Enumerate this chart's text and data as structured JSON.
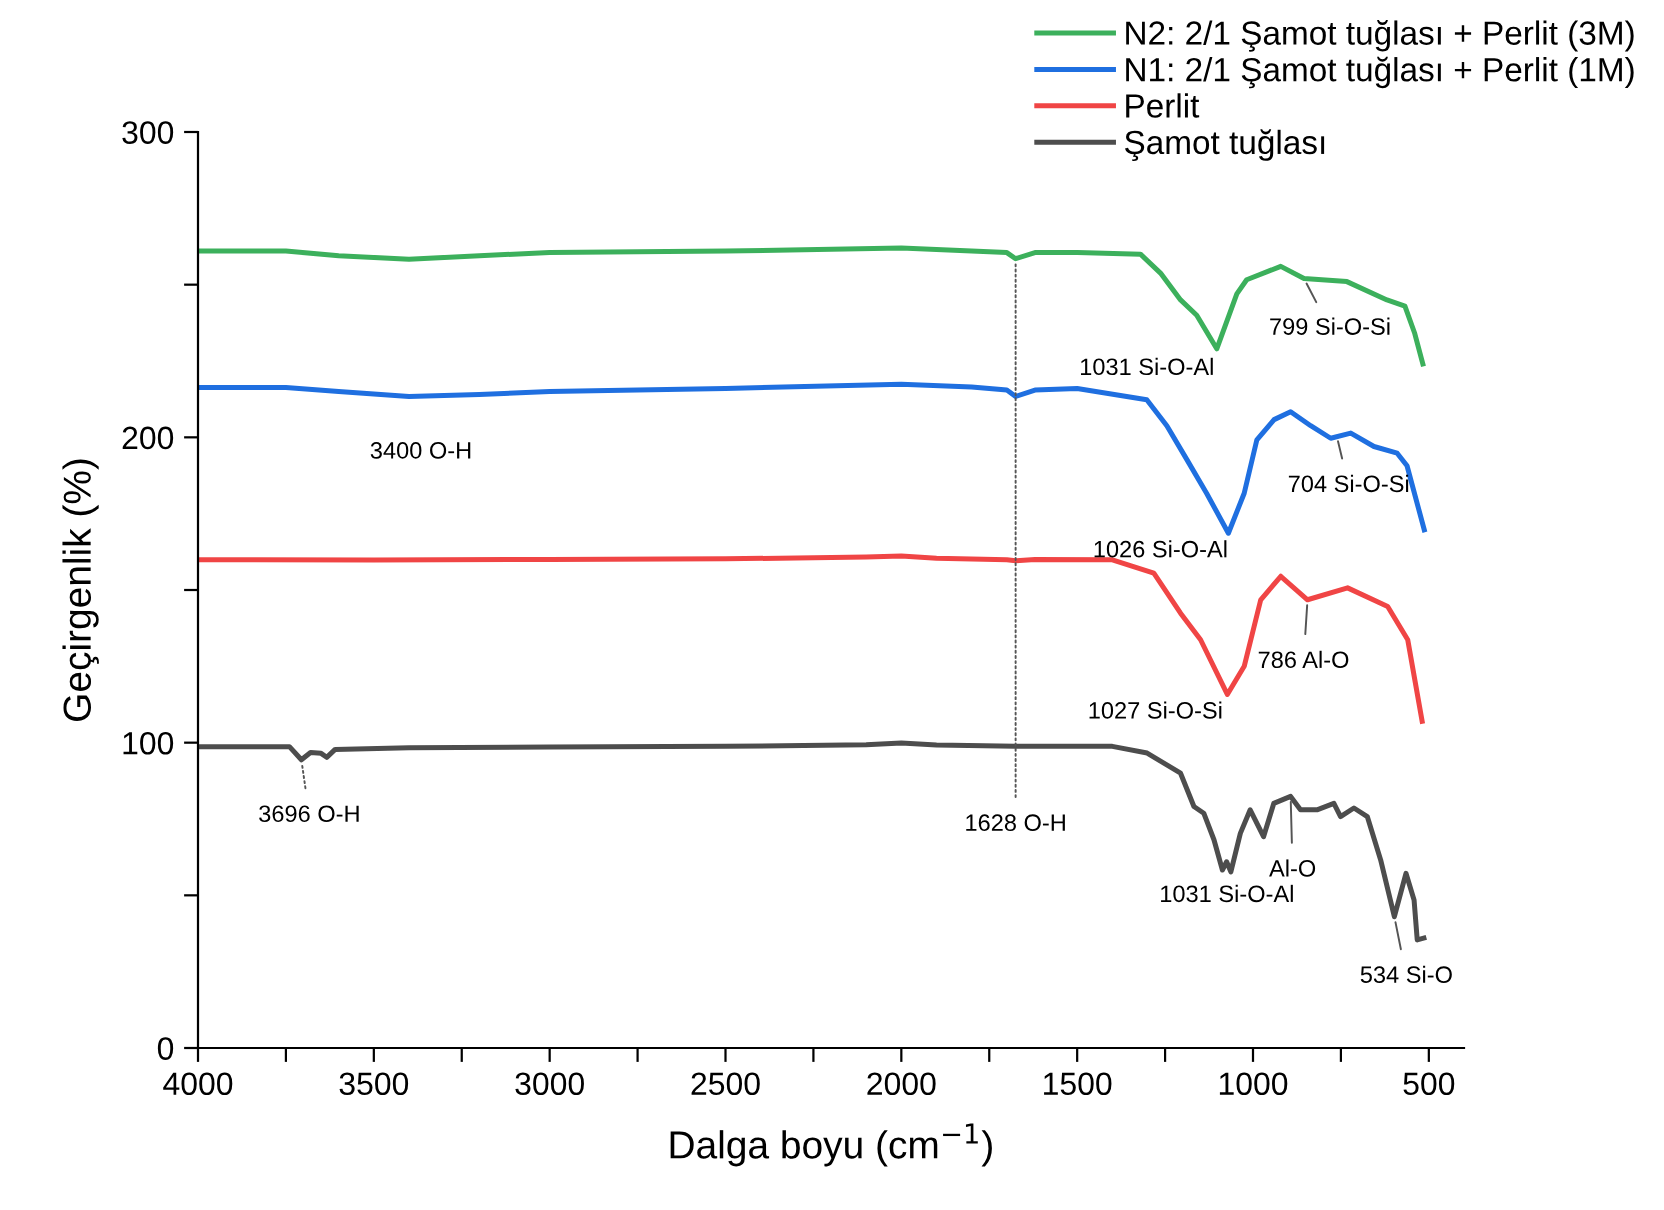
{
  "chart_data": {
    "type": "line",
    "xlabel": "Dalga boyu (cm$^{−1}$)",
    "ylabel": "Geçirgenlik (%)",
    "xlim": [
      4000,
      400
    ],
    "ylim": [
      0,
      300
    ],
    "xticks": [
      4000,
      {
        "value": 3750,
        "label": null
      },
      3500,
      {
        "value": 3250,
        "label": null
      },
      3000,
      {
        "value": 2750,
        "label": null
      },
      2500,
      {
        "value": 2250,
        "label": null
      },
      2000,
      {
        "value": 1750,
        "label": null
      },
      1500,
      {
        "value": 1250,
        "label": null
      },
      1000,
      {
        "value": 750,
        "label": null
      },
      500
    ],
    "yticks": [
      0,
      {
        "value": 50,
        "label": null
      },
      100,
      {
        "value": 150,
        "label": null
      },
      200,
      {
        "value": 250,
        "label": null
      },
      300
    ],
    "grid": false,
    "legend": "top right",
    "line_style": "solid",
    "marker": "none",
    "series": [
      {
        "name": "N2: 2/1 Şamot tuğlası + Perlit (3M)",
        "color": "#3cb05c",
        "x": [
          4000,
          3750,
          3600,
          3400,
          3200,
          3000,
          2500,
          2000,
          1800,
          1700,
          1675,
          1620,
          1500,
          1320,
          1263,
          1206,
          1160,
          1103,
          1046,
          1018,
          921,
          855,
          733,
          619,
          568,
          540,
          517
        ],
        "values": [
          261,
          261,
          259.5,
          258.3,
          259.5,
          260.5,
          261,
          262,
          261,
          260.5,
          258.5,
          260.5,
          260.5,
          260,
          253.8,
          245,
          240,
          229,
          247,
          251.6,
          256,
          252,
          251,
          245,
          243,
          234,
          224
        ]
      },
      {
        "name": "N1: 2/1 Şamot tuğlası + Perlit (1M)",
        "color": "#1f6fe0",
        "x": [
          4000,
          3750,
          3600,
          3400,
          3200,
          3000,
          2500,
          2000,
          1800,
          1700,
          1675,
          1620,
          1500,
          1302,
          1245,
          1188,
          1132,
          1070,
          1025,
          989,
          940,
          893,
          836,
          779,
          722,
          656,
          590,
          562,
          513
        ],
        "values": [
          216.3,
          216.3,
          215,
          213.4,
          214,
          215,
          216,
          217.4,
          216.5,
          215.5,
          213.4,
          215.5,
          216,
          212.3,
          203.8,
          192.7,
          181.7,
          168.6,
          181.7,
          199.2,
          205.8,
          208.4,
          203.8,
          199.7,
          201.4,
          197,
          194.8,
          190.7,
          169.7
        ]
      },
      {
        "name": "Perlit",
        "color": "#f04545",
        "x": [
          4000,
          3500,
          3000,
          2500,
          2100,
          2000,
          1900,
          1700,
          1675,
          1620,
          1400,
          1282,
          1206,
          1149,
          1073,
          1025,
          978,
          921,
          845,
          731,
          617,
          560,
          519
        ],
        "values": [
          159.9,
          159.8,
          160,
          160.2,
          160.8,
          161.1,
          160.4,
          159.9,
          159.6,
          160,
          159.9,
          155.5,
          142.4,
          133.7,
          115.8,
          125,
          146.8,
          154.5,
          146.8,
          150.7,
          144.6,
          133.7,
          107
        ]
      },
      {
        "name": "Şamot tuğlası",
        "color": "#4d4d4d",
        "x": [
          4000,
          3740,
          3706,
          3680,
          3650,
          3634,
          3610,
          3400,
          3000,
          2500,
          2100,
          2000,
          1900,
          1675,
          1400,
          1301,
          1206,
          1168,
          1140,
          1111,
          1087,
          1075,
          1063,
          1036,
          1008,
          970,
          941,
          893,
          865,
          818,
          770,
          751,
          713,
          675,
          637,
          598,
          565,
          542,
          533,
          514
        ],
        "values": [
          98.7,
          98.7,
          94.4,
          96.8,
          96.5,
          95.2,
          97.8,
          98.3,
          98.6,
          98.8,
          99.3,
          99.9,
          99.2,
          98.8,
          98.8,
          96.6,
          90,
          79.1,
          76.9,
          68.2,
          58.3,
          61,
          57.7,
          70.3,
          78,
          69.2,
          80.1,
          82.4,
          78,
          78,
          80.1,
          75.8,
          78.6,
          75.8,
          61.6,
          43,
          57.2,
          48.5,
          35.4,
          36
        ]
      }
    ],
    "annotations": [
      {
        "text": "3400 O-H",
        "x": 3400,
        "y": 213.4
      },
      {
        "text": "3696 O-H",
        "x": 3706,
        "y": 94.4
      },
      {
        "text": "1628 O-H",
        "x": 1675,
        "y": 258.5
      },
      {
        "text": "1031 Si-O-Al",
        "x": 1103,
        "y": 229
      },
      {
        "text": "799 Si-O-Si",
        "x": 855,
        "y": 252
      },
      {
        "text": "1026 Si-O-Al",
        "x": 1070,
        "y": 168.6
      },
      {
        "text": "704 Si-O-Si",
        "x": 762,
        "y": 200.5
      },
      {
        "text": "1027 Si-O-Si",
        "x": 1073,
        "y": 115.8
      },
      {
        "text": "786 Al-O",
        "x": 845,
        "y": 146.8
      },
      {
        "text": "Al-O",
        "x": 893,
        "y": 82.4
      },
      {
        "text": "1031 Si-O-Al",
        "x": 1063,
        "y": 57.7
      },
      {
        "text": "534 Si-O",
        "x": 598,
        "y": 43
      }
    ]
  }
}
